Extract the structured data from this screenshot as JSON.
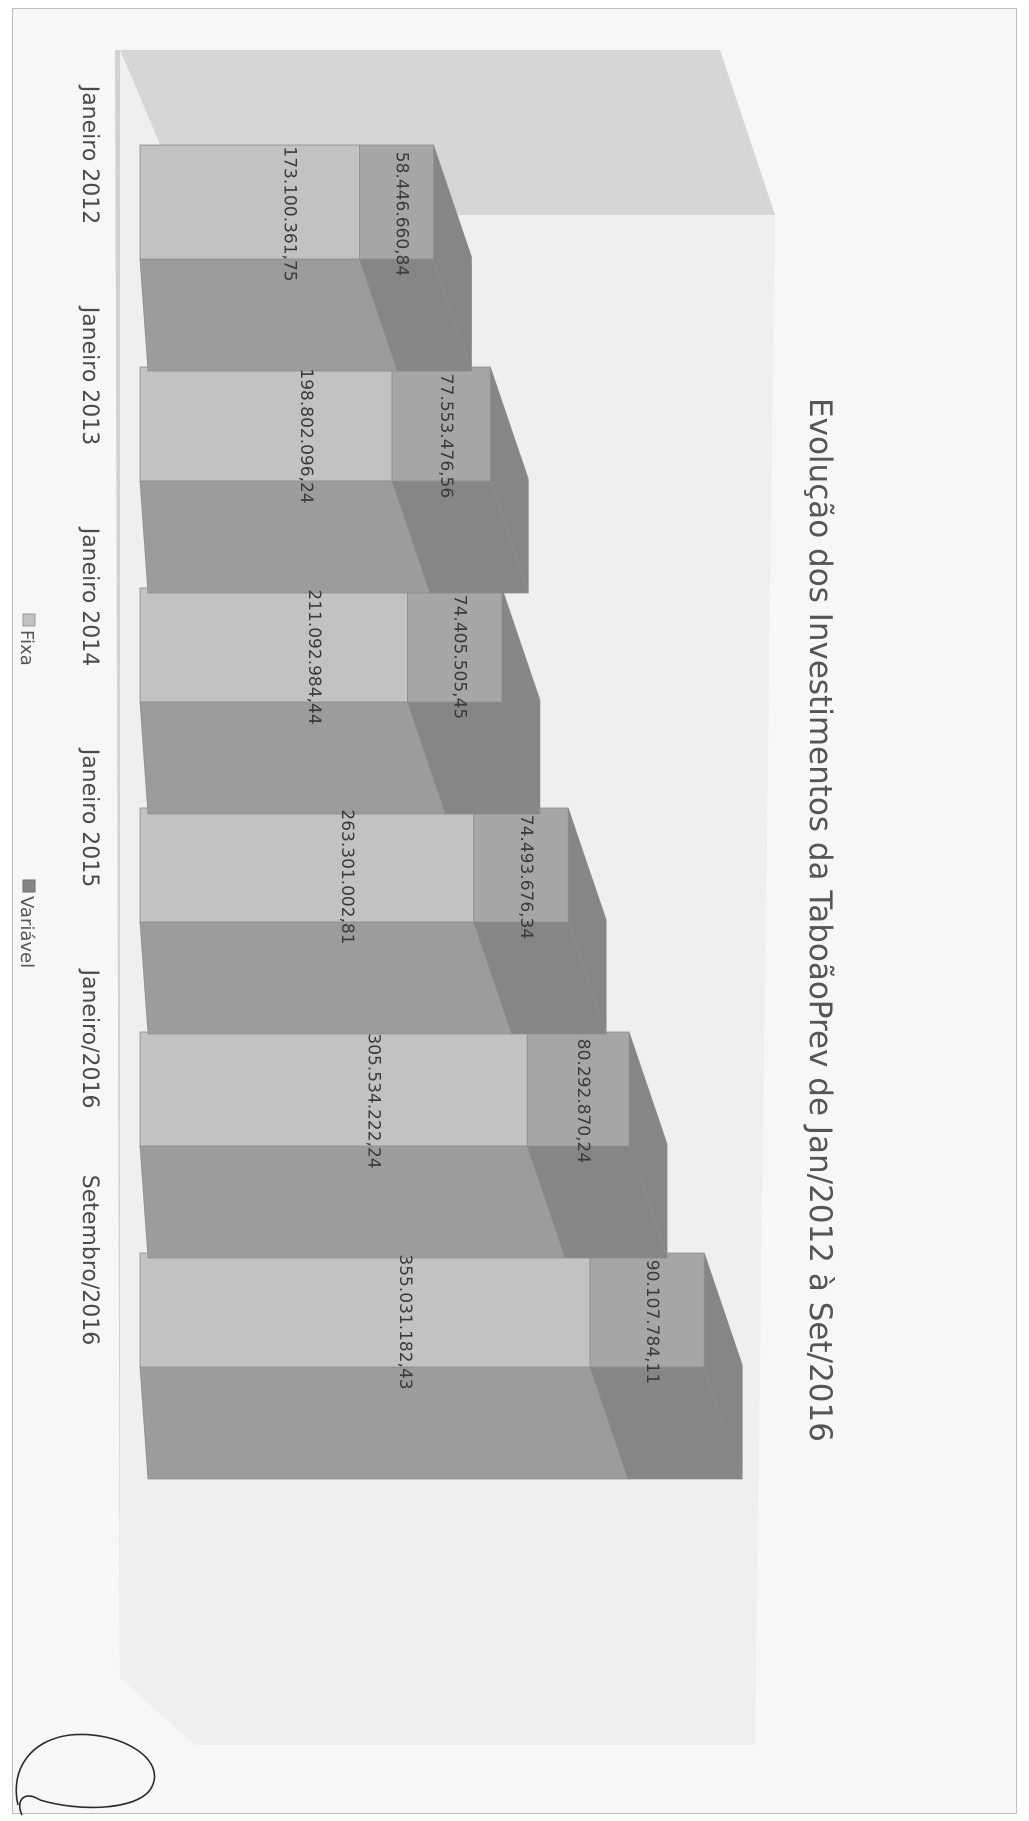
{
  "chart_data": {
    "type": "bar",
    "stacked": true,
    "three_d": true,
    "orientation": "rotated-90-clockwise",
    "title": "Evolução dos Investimentos da TaboãoPrev de Jan/2012 à Set/2016",
    "categories": [
      "Janeiro 2012",
      "Janeiro 2013",
      "Janeiro 2014",
      "Janeiro 2015",
      "Janeiro/2016",
      "Setembro/2016"
    ],
    "series": [
      {
        "name": "Fixa",
        "values": [
          173100361.75,
          198802096.24,
          211092984.44,
          263301002.81,
          305534222.24,
          355031182.43
        ],
        "labels": [
          "173.100.361,75",
          "198.802.096,24",
          "211.092.984,44",
          "263.301.002,81",
          "305.534.222,24",
          "355.031.182,43"
        ]
      },
      {
        "name": "Variável",
        "values": [
          58446660.84,
          77553476.56,
          74405505.45,
          74493676.34,
          80292870.24,
          90107784.11
        ],
        "labels": [
          "58.446.660,84",
          "77.553.476,56",
          "74.405.505,45",
          "74.493.676,34",
          "80.292.870,24",
          "90.107.784,11"
        ]
      }
    ],
    "legend": {
      "placement": "bottom",
      "entries": [
        "Fixa",
        "Variável"
      ]
    },
    "colors": {
      "fixa_front": "#c2c2c2",
      "fixa_side": "#9c9c9c",
      "variavel_front": "#a6a6a6",
      "variavel_side": "#868686",
      "top": "#b4b4b4",
      "back_wall": "#d2d2d2",
      "floor": "#ececec"
    },
    "grid": false
  }
}
